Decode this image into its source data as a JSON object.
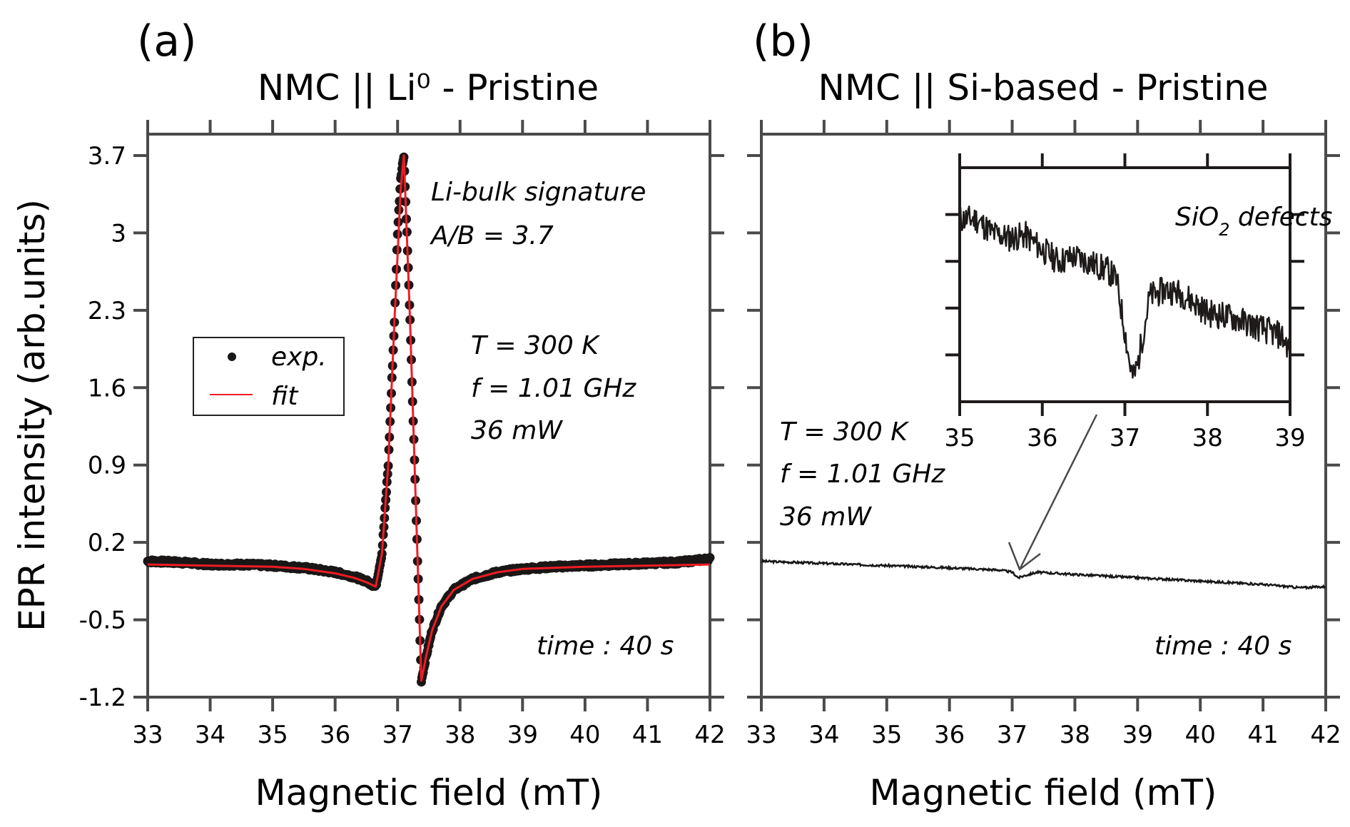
{
  "chart_data": [
    {
      "id": "a",
      "type": "scatter",
      "panel_label": "(a)",
      "title": "NMC || Li⁰ - Pristine",
      "xlabel": "Magnetic field (mT)",
      "ylabel": "EPR intensity (arb.units)",
      "xlim": [
        33,
        42
      ],
      "ylim": [
        -1.2,
        3.7
      ],
      "xticks": [
        33,
        34,
        35,
        36,
        37,
        38,
        39,
        40,
        41,
        42
      ],
      "yticks": [
        3.7,
        3,
        2.3,
        1.6,
        0.9,
        0.2,
        -0.5,
        -1.2
      ],
      "ytick_labels": [
        "3.7",
        "3",
        "2.3",
        "1.6",
        "0.9",
        "0.2",
        "-0.5",
        "-1.2"
      ],
      "grid": false,
      "legend": {
        "placement": "center-left",
        "entries": [
          {
            "label": "exp.",
            "marker": "dot",
            "color": "#1a1717"
          },
          {
            "label": "fit",
            "marker": "line",
            "color": "#ee1c25"
          }
        ]
      },
      "series": [
        {
          "name": "exp.",
          "kind": "scatter",
          "color": "#1a1717",
          "x": [
            33.0,
            33.5,
            34.0,
            34.5,
            35.0,
            35.5,
            36.0,
            36.3,
            36.5,
            36.65,
            36.75,
            36.85,
            36.95,
            37.0,
            37.05,
            37.1,
            37.15,
            37.2,
            37.25,
            37.3,
            37.35,
            37.38,
            37.45,
            37.55,
            37.7,
            37.9,
            38.2,
            38.6,
            39.0,
            39.5,
            40.0,
            40.5,
            41.0,
            41.5,
            42.0
          ],
          "y": [
            0.03,
            0.02,
            0.0,
            0.0,
            -0.01,
            -0.03,
            -0.07,
            -0.11,
            -0.15,
            -0.2,
            0.1,
            0.9,
            2.2,
            3.0,
            3.5,
            3.7,
            3.0,
            2.2,
            1.3,
            0.4,
            -0.5,
            -1.05,
            -0.85,
            -0.6,
            -0.38,
            -0.23,
            -0.13,
            -0.07,
            -0.04,
            -0.02,
            -0.01,
            0.0,
            0.01,
            0.02,
            0.05
          ]
        },
        {
          "name": "fit",
          "kind": "line",
          "color": "#ee1c25",
          "x": [
            33.0,
            34.0,
            35.0,
            35.5,
            36.0,
            36.3,
            36.5,
            36.65,
            36.75,
            36.85,
            36.95,
            37.05,
            37.1,
            37.2,
            37.3,
            37.38,
            37.45,
            37.55,
            37.7,
            37.9,
            38.2,
            38.6,
            39.0,
            40.0,
            41.0,
            42.0
          ],
          "y": [
            0.0,
            -0.01,
            -0.02,
            -0.04,
            -0.08,
            -0.12,
            -0.16,
            -0.2,
            0.1,
            0.9,
            2.2,
            3.4,
            3.7,
            2.2,
            0.4,
            -1.05,
            -0.85,
            -0.6,
            -0.38,
            -0.23,
            -0.13,
            -0.07,
            -0.04,
            -0.02,
            -0.01,
            0.0
          ]
        }
      ],
      "annotations": [
        "Li-bulk signature",
        "A/B = 3.7",
        "T = 300 K",
        "f = 1.01 GHz",
        "36 mW",
        "time : 40 s"
      ]
    },
    {
      "id": "b",
      "type": "line",
      "panel_label": "(b)",
      "title": "NMC || Si-based - Pristine",
      "xlabel": "Magnetic field (mT)",
      "ylabel": "",
      "xlim": [
        33,
        42
      ],
      "ylim": [
        -1.2,
        3.7
      ],
      "xticks": [
        33,
        34,
        35,
        36,
        37,
        38,
        39,
        40,
        41,
        42
      ],
      "yticks": [
        3.7,
        3,
        2.3,
        1.6,
        0.9,
        0.2,
        -0.5,
        -1.2
      ],
      "ytick_labels": [],
      "grid": false,
      "series": [
        {
          "name": "signal",
          "kind": "line",
          "color": "#1a1717",
          "x": [
            33.0,
            34.0,
            35.0,
            36.0,
            36.8,
            37.0,
            37.1,
            37.2,
            37.4,
            38.0,
            39.0,
            40.0,
            41.0,
            41.6,
            42.0
          ],
          "y": [
            0.03,
            0.01,
            -0.01,
            -0.03,
            -0.05,
            -0.07,
            -0.12,
            -0.1,
            -0.07,
            -0.09,
            -0.12,
            -0.15,
            -0.18,
            -0.21,
            -0.2
          ]
        }
      ],
      "annotations": [
        "T = 300 K",
        "f = 1.01 GHz",
        "36 mW",
        "time : 40 s"
      ],
      "inset": {
        "type": "line",
        "xlim": [
          35,
          39
        ],
        "xticks": [
          35,
          36,
          37,
          38,
          39
        ],
        "yticks_count": 4,
        "ytick_labels": [],
        "label": "SiO₂ defects",
        "label_main": "SiO",
        "label_sub": "2",
        "label_rest": " defects",
        "color": "#1e1a1a",
        "series_x": [
          35.0,
          35.2,
          35.4,
          35.6,
          35.8,
          36.0,
          36.2,
          36.4,
          36.6,
          36.8,
          36.9,
          37.0,
          37.05,
          37.1,
          37.15,
          37.2,
          37.3,
          37.5,
          37.7,
          38.0,
          38.3,
          38.6,
          38.9,
          39.0
        ],
        "series_y_relative": [
          0.78,
          0.78,
          0.72,
          0.7,
          0.71,
          0.65,
          0.6,
          0.62,
          0.59,
          0.56,
          0.52,
          0.3,
          0.18,
          0.1,
          0.15,
          0.25,
          0.45,
          0.48,
          0.46,
          0.38,
          0.36,
          0.32,
          0.28,
          0.22
        ]
      },
      "arrow": {
        "from": "inset",
        "to_x": 37.1,
        "color": "#4a4a4a"
      }
    }
  ]
}
